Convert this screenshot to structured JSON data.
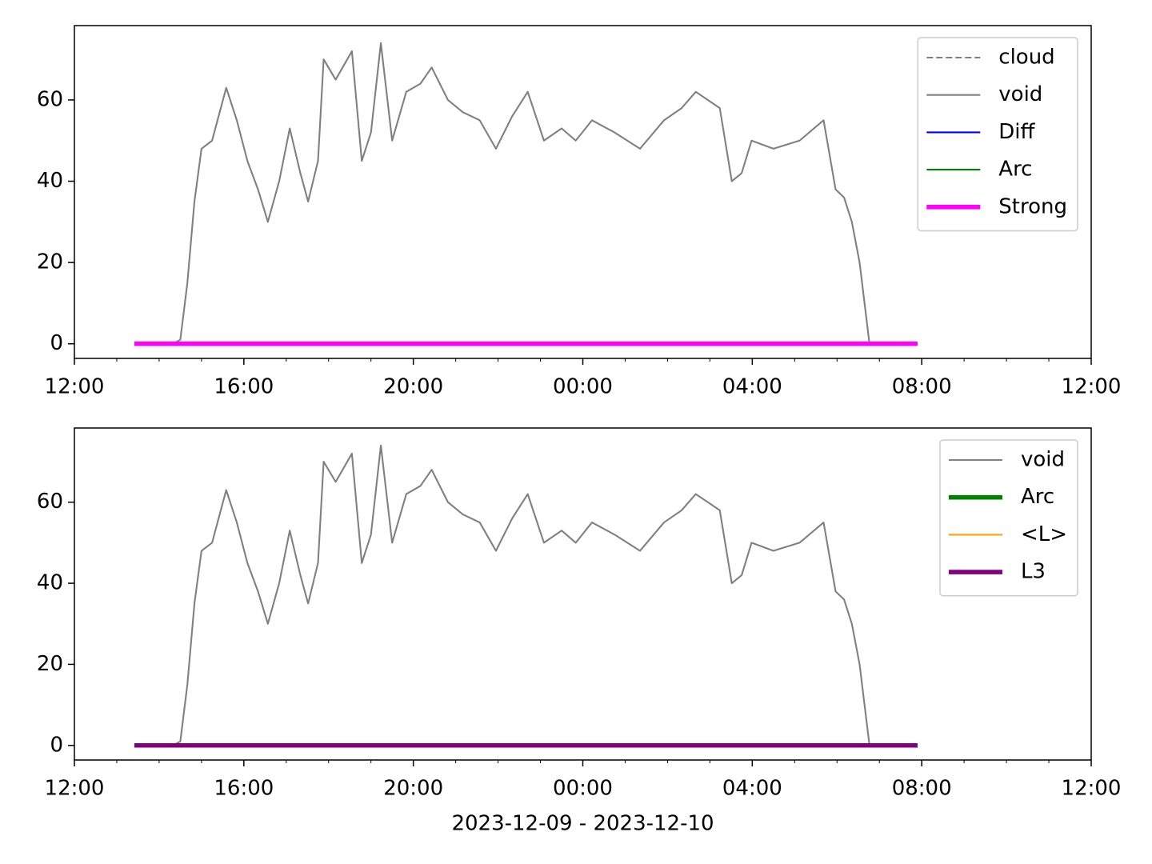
{
  "chart_data": [
    {
      "type": "line",
      "legend": "upper right",
      "ylim": [
        -3.6,
        78.3
      ],
      "yticks": [
        0,
        20,
        40,
        60
      ],
      "xlim": [
        "2023-12-09T12:00",
        "2023-12-10T12:00"
      ],
      "xticks": [
        {
          "value": "2023-12-09T12:00",
          "label": "12:00"
        },
        {
          "value": "2023-12-09T16:00",
          "label": "16:00"
        },
        {
          "value": "2023-12-09T20:00",
          "label": "20:00"
        },
        {
          "value": "2023-12-10T00:00",
          "label": "00:00"
        },
        {
          "value": "2023-12-10T04:00",
          "label": "04:00"
        },
        {
          "value": "2023-12-10T08:00",
          "label": "08:00"
        },
        {
          "value": "2023-12-10T12:00",
          "label": "12:00"
        }
      ],
      "xminorticks": [
        "2023-12-09T13:00",
        "2023-12-09T14:00",
        "2023-12-09T15:00",
        "2023-12-09T17:00",
        "2023-12-09T18:00",
        "2023-12-09T19:00",
        "2023-12-09T21:00",
        "2023-12-09T22:00",
        "2023-12-09T23:00",
        "2023-12-10T01:00",
        "2023-12-10T02:00",
        "2023-12-10T03:00",
        "2023-12-10T05:00",
        "2023-12-10T06:00",
        "2023-12-10T07:00",
        "2023-12-10T09:00",
        "2023-12-10T10:00",
        "2023-12-10T11:00"
      ],
      "series": [
        {
          "name": "cloud",
          "color": "#808080",
          "linestyle": "dashed",
          "linewidth": 1.5,
          "x": [
            "2023-12-09T13:25",
            "2023-12-10T07:54"
          ],
          "values": [
            0,
            0
          ]
        },
        {
          "name": "void",
          "color": "#808080",
          "linestyle": "solid",
          "linewidth": 1.5,
          "x": [
            "2023-12-09T14:20",
            "2023-12-09T14:30",
            "2023-12-09T14:40",
            "2023-12-09T14:50",
            "2023-12-09T15:00",
            "2023-12-09T15:15",
            "2023-12-09T15:35",
            "2023-12-09T15:50",
            "2023-12-09T16:05",
            "2023-12-09T16:20",
            "2023-12-09T16:34",
            "2023-12-09T16:50",
            "2023-12-09T17:05",
            "2023-12-09T17:20",
            "2023-12-09T17:31",
            "2023-12-09T17:45",
            "2023-12-09T17:53",
            "2023-12-09T18:10",
            "2023-12-09T18:33",
            "2023-12-09T18:47",
            "2023-12-09T19:00",
            "2023-12-09T19:14",
            "2023-12-09T19:30",
            "2023-12-09T19:50",
            "2023-12-09T20:10",
            "2023-12-09T20:26",
            "2023-12-09T20:49",
            "2023-12-09T21:10",
            "2023-12-09T21:34",
            "2023-12-09T21:57",
            "2023-12-09T22:20",
            "2023-12-09T22:42",
            "2023-12-09T23:05",
            "2023-12-09T23:30",
            "2023-12-09T23:50",
            "2023-12-10T00:13",
            "2023-12-10T00:45",
            "2023-12-10T01:21",
            "2023-12-10T01:55",
            "2023-12-10T02:20",
            "2023-12-10T02:40",
            "2023-12-10T03:14",
            "2023-12-10T03:31",
            "2023-12-10T03:45",
            "2023-12-10T03:59",
            "2023-12-10T04:30",
            "2023-12-10T05:07",
            "2023-12-10T05:41",
            "2023-12-10T05:58",
            "2023-12-10T06:10",
            "2023-12-10T06:21",
            "2023-12-10T06:32",
            "2023-12-10T06:46"
          ],
          "values": [
            0,
            1,
            15,
            35,
            48,
            50,
            63,
            55,
            45,
            38,
            30,
            40,
            53,
            42,
            35,
            45,
            70,
            65,
            72,
            45,
            52,
            74,
            50,
            62,
            64,
            68,
            60,
            57,
            55,
            48,
            56,
            62,
            50,
            53,
            50,
            55,
            52,
            48,
            55,
            58,
            62,
            58,
            40,
            42,
            50,
            48,
            50,
            55,
            38,
            36,
            30,
            20,
            0
          ]
        },
        {
          "name": "Diff",
          "color": "#0000ff",
          "linestyle": "solid",
          "linewidth": 1.5,
          "x": [
            "2023-12-09T13:25",
            "2023-12-10T07:54"
          ],
          "values": [
            0,
            0
          ]
        },
        {
          "name": "Arc",
          "color": "#008000",
          "linestyle": "solid",
          "linewidth": 1.5,
          "x": [
            "2023-12-09T13:25",
            "2023-12-10T07:54"
          ],
          "values": [
            0,
            0
          ]
        },
        {
          "name": "Strong",
          "color": "#ff00ff",
          "linestyle": "solid",
          "linewidth": 4,
          "x": [
            "2023-12-09T13:25",
            "2023-12-10T07:54"
          ],
          "values": [
            0,
            0
          ]
        }
      ]
    },
    {
      "type": "line",
      "legend": "upper right",
      "xlabel": "2023-12-09 - 2023-12-10",
      "ylim": [
        -3.6,
        78.3
      ],
      "yticks": [
        0,
        20,
        40,
        60
      ],
      "xlim": [
        "2023-12-09T12:00",
        "2023-12-10T12:00"
      ],
      "xticks": [
        {
          "value": "2023-12-09T12:00",
          "label": "12:00"
        },
        {
          "value": "2023-12-09T16:00",
          "label": "16:00"
        },
        {
          "value": "2023-12-09T20:00",
          "label": "20:00"
        },
        {
          "value": "2023-12-10T00:00",
          "label": "00:00"
        },
        {
          "value": "2023-12-10T04:00",
          "label": "04:00"
        },
        {
          "value": "2023-12-10T08:00",
          "label": "08:00"
        },
        {
          "value": "2023-12-10T12:00",
          "label": "12:00"
        }
      ],
      "xminorticks": [
        "2023-12-09T13:00",
        "2023-12-09T14:00",
        "2023-12-09T15:00",
        "2023-12-09T17:00",
        "2023-12-09T18:00",
        "2023-12-09T19:00",
        "2023-12-09T21:00",
        "2023-12-09T22:00",
        "2023-12-09T23:00",
        "2023-12-10T01:00",
        "2023-12-10T02:00",
        "2023-12-10T03:00",
        "2023-12-10T05:00",
        "2023-12-10T06:00",
        "2023-12-10T07:00",
        "2023-12-10T09:00",
        "2023-12-10T10:00",
        "2023-12-10T11:00"
      ],
      "series": [
        {
          "name": "void",
          "color": "#808080",
          "linestyle": "solid",
          "linewidth": 1.5,
          "x": [
            "2023-12-09T14:20",
            "2023-12-09T14:30",
            "2023-12-09T14:40",
            "2023-12-09T14:50",
            "2023-12-09T15:00",
            "2023-12-09T15:15",
            "2023-12-09T15:35",
            "2023-12-09T15:50",
            "2023-12-09T16:05",
            "2023-12-09T16:20",
            "2023-12-09T16:34",
            "2023-12-09T16:50",
            "2023-12-09T17:05",
            "2023-12-09T17:20",
            "2023-12-09T17:31",
            "2023-12-09T17:45",
            "2023-12-09T17:53",
            "2023-12-09T18:10",
            "2023-12-09T18:33",
            "2023-12-09T18:47",
            "2023-12-09T19:00",
            "2023-12-09T19:14",
            "2023-12-09T19:30",
            "2023-12-09T19:50",
            "2023-12-09T20:10",
            "2023-12-09T20:26",
            "2023-12-09T20:49",
            "2023-12-09T21:10",
            "2023-12-09T21:34",
            "2023-12-09T21:57",
            "2023-12-09T22:20",
            "2023-12-09T22:42",
            "2023-12-09T23:05",
            "2023-12-09T23:30",
            "2023-12-09T23:50",
            "2023-12-10T00:13",
            "2023-12-10T00:45",
            "2023-12-10T01:21",
            "2023-12-10T01:55",
            "2023-12-10T02:20",
            "2023-12-10T02:40",
            "2023-12-10T03:14",
            "2023-12-10T03:31",
            "2023-12-10T03:45",
            "2023-12-10T03:59",
            "2023-12-10T04:30",
            "2023-12-10T05:07",
            "2023-12-10T05:41",
            "2023-12-10T05:58",
            "2023-12-10T06:10",
            "2023-12-10T06:21",
            "2023-12-10T06:32",
            "2023-12-10T06:46"
          ],
          "values": [
            0,
            1,
            15,
            35,
            48,
            50,
            63,
            55,
            45,
            38,
            30,
            40,
            53,
            42,
            35,
            45,
            70,
            65,
            72,
            45,
            52,
            74,
            50,
            62,
            64,
            68,
            60,
            57,
            55,
            48,
            56,
            62,
            50,
            53,
            50,
            55,
            52,
            48,
            55,
            58,
            62,
            58,
            40,
            42,
            50,
            48,
            50,
            55,
            38,
            36,
            30,
            20,
            0
          ]
        },
        {
          "name": "Arc",
          "color": "#008000",
          "linestyle": "solid",
          "linewidth": 4,
          "x": [
            "2023-12-09T13:25",
            "2023-12-10T07:54"
          ],
          "values": [
            0,
            0
          ]
        },
        {
          "name": "<L>",
          "color": "#ffa500",
          "linestyle": "solid",
          "linewidth": 1.5,
          "x": [
            "2023-12-09T13:25",
            "2023-12-10T07:54"
          ],
          "values": [
            0,
            0
          ]
        },
        {
          "name": "L3",
          "color": "#800080",
          "linestyle": "solid",
          "linewidth": 4,
          "x": [
            "2023-12-09T13:25",
            "2023-12-10T07:54"
          ],
          "values": [
            0,
            0
          ]
        }
      ]
    }
  ]
}
